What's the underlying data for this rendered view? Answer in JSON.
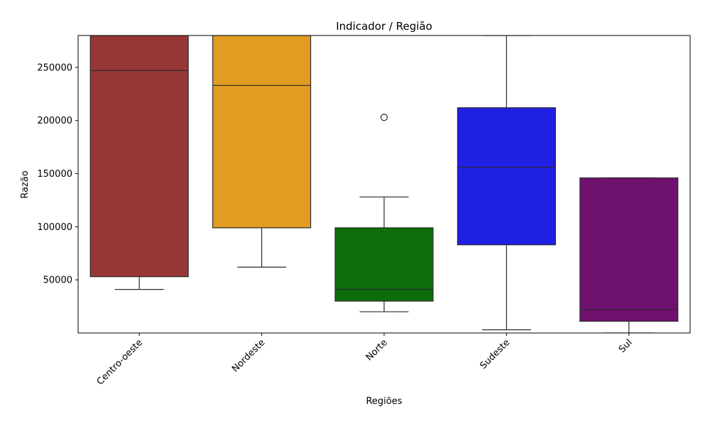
{
  "chart_data": {
    "type": "boxplot",
    "title": "Indicador / Região",
    "xlabel": "Regiões",
    "ylabel": "Razão",
    "ylim": [
      0,
      280000
    ],
    "yticks": [
      50000,
      100000,
      150000,
      200000,
      250000
    ],
    "ytick_labels": [
      "50000",
      "100000",
      "150000",
      "200000",
      "250000"
    ],
    "categories": [
      "Centro-oeste",
      "Nordeste",
      "Norte",
      "Sudeste",
      "Sul"
    ],
    "grid": false,
    "boxes": [
      {
        "category": "Centro-oeste",
        "color": "#973636",
        "whisker_low": 41000,
        "q1": 53000,
        "median": 247000,
        "q3": 280000,
        "whisker_high": 280000,
        "outliers": []
      },
      {
        "category": "Nordeste",
        "color": "#e09d21",
        "whisker_low": 62000,
        "q1": 99000,
        "median": 233000,
        "q3": 280000,
        "whisker_high": 280000,
        "outliers": []
      },
      {
        "category": "Norte",
        "color": "#0b6e0b",
        "whisker_low": 20000,
        "q1": 30000,
        "median": 41000,
        "q3": 99000,
        "whisker_high": 128000,
        "outliers": [
          203000
        ]
      },
      {
        "category": "Sudeste",
        "color": "#2020e4",
        "whisker_low": 3000,
        "q1": 83000,
        "median": 156000,
        "q3": 212000,
        "whisker_high": 280000,
        "outliers": []
      },
      {
        "category": "Sul",
        "color": "#6f116f",
        "whisker_low": 0,
        "q1": 11000,
        "median": 22000,
        "q3": 146000,
        "whisker_high": 146000,
        "outliers": []
      }
    ]
  }
}
